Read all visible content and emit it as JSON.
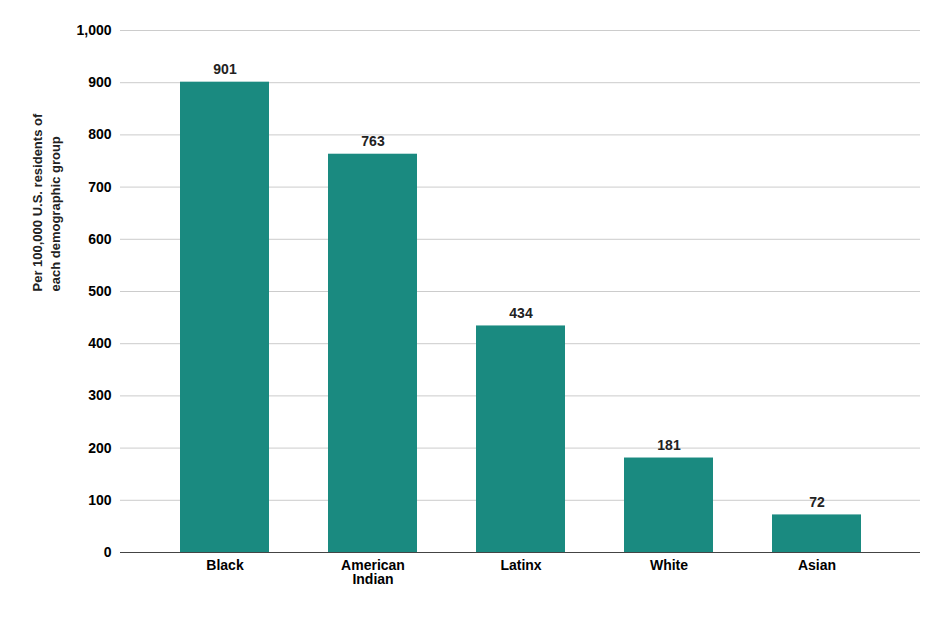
{
  "chart_data": {
    "type": "bar",
    "categories": [
      "Black",
      "American\nIndian",
      "Latinx",
      "White",
      "Asian"
    ],
    "values": [
      901,
      763,
      434,
      181,
      72
    ],
    "color": "#1a8a80",
    "ylabel": "Per 100,000 U.S. residents of\neach demographic group",
    "ylim": [
      0,
      1000
    ],
    "yticks": [
      0,
      100,
      200,
      300,
      400,
      500,
      600,
      700,
      800,
      900,
      {
        "value": 1000,
        "label": "1,000"
      }
    ],
    "grid": true,
    "data_labels": true
  }
}
